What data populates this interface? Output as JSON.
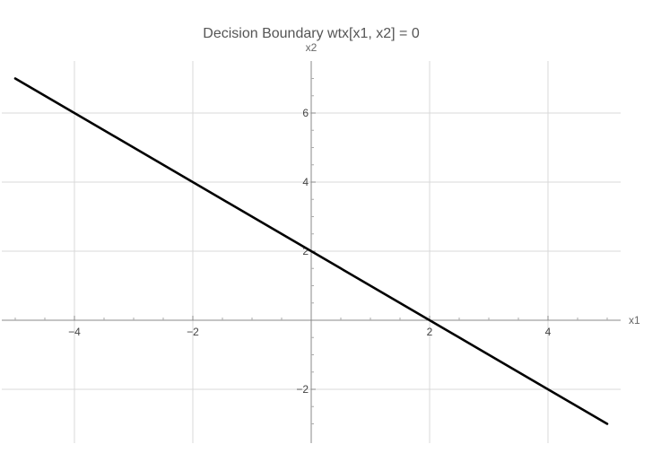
{
  "chart_data": {
    "type": "line",
    "title": "Decision Boundary wtx[x1, x2] = 0",
    "xlabel": "x1",
    "ylabel": "x2",
    "xlim": [
      -5.2,
      5.2
    ],
    "ylim": [
      -3.5,
      7.5
    ],
    "grid": true,
    "x_ticks": [
      -4,
      -2,
      2,
      4
    ],
    "y_ticks": [
      -2,
      2,
      4,
      6
    ],
    "x_tick_labels": [
      "−4",
      "−2",
      "2",
      "4"
    ],
    "y_tick_labels": [
      "−2",
      "2",
      "4",
      "6"
    ],
    "grid_x": [
      -4,
      -2,
      2,
      4
    ],
    "grid_y": [
      -2,
      2,
      4,
      6
    ],
    "series": [
      {
        "x": [
          -5,
          5
        ],
        "y": [
          7,
          -3
        ],
        "color": "#000000"
      }
    ]
  }
}
